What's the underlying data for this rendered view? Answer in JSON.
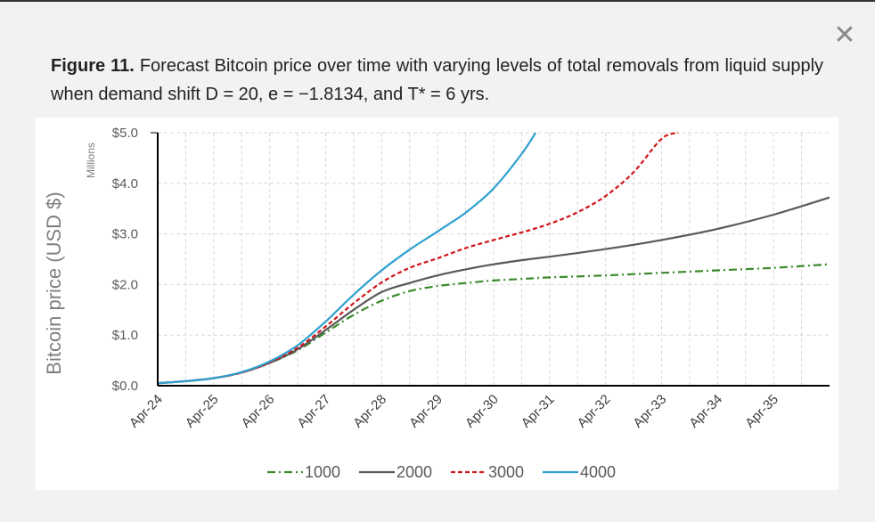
{
  "dialog": {
    "close_symbol": "✕"
  },
  "caption": {
    "label": "Figure 11.",
    "text": "Forecast Bitcoin price over time with varying levels of total removals from liquid supply when demand shift D = 20, e = −1.8134, and T* = 6 yrs."
  },
  "chart_data": {
    "type": "line",
    "title": "",
    "ylabel": "Bitcoin price (USD $)",
    "y_unit_label": "Millions",
    "xlabel": "",
    "ylim": [
      0,
      5
    ],
    "xlim": [
      2024.25,
      2036.25
    ],
    "grid": true,
    "legend_position": "bottom",
    "y_ticks": [
      {
        "value": 0,
        "label": "$0.0"
      },
      {
        "value": 1,
        "label": "$1.0"
      },
      {
        "value": 2,
        "label": "$2.0"
      },
      {
        "value": 3,
        "label": "$3.0"
      },
      {
        "value": 4,
        "label": "$4.0"
      },
      {
        "value": 5,
        "label": "$5.0"
      }
    ],
    "x_ticks": [
      {
        "value": 2024.25,
        "label": "Apr-24"
      },
      {
        "value": 2025.25,
        "label": "Apr-25"
      },
      {
        "value": 2026.25,
        "label": "Apr-26"
      },
      {
        "value": 2027.25,
        "label": "Apr-27"
      },
      {
        "value": 2028.25,
        "label": "Apr-28"
      },
      {
        "value": 2029.25,
        "label": "Apr-29"
      },
      {
        "value": 2030.25,
        "label": "Apr-30"
      },
      {
        "value": 2031.25,
        "label": "Apr-31"
      },
      {
        "value": 2032.25,
        "label": "Apr-32"
      },
      {
        "value": 2033.25,
        "label": "Apr-33"
      },
      {
        "value": 2034.25,
        "label": "Apr-34"
      },
      {
        "value": 2035.25,
        "label": "Apr-35"
      }
    ],
    "series": [
      {
        "name": "1000",
        "color": "#3a8a2a",
        "dash": "dashdot",
        "x": [
          2024.25,
          2024.75,
          2025.25,
          2025.75,
          2026.25,
          2026.75,
          2027.25,
          2027.75,
          2028.25,
          2028.75,
          2029.25,
          2029.75,
          2030.25,
          2030.75,
          2031.25,
          2032.25,
          2033.25,
          2034.25,
          2035.25,
          2036.25
        ],
        "values": [
          0.05,
          0.09,
          0.15,
          0.26,
          0.45,
          0.7,
          1.05,
          1.4,
          1.68,
          1.87,
          1.97,
          2.03,
          2.08,
          2.11,
          2.14,
          2.18,
          2.23,
          2.28,
          2.33,
          2.4
        ]
      },
      {
        "name": "2000",
        "color": "#595959",
        "dash": "solid",
        "x": [
          2024.25,
          2024.75,
          2025.25,
          2025.75,
          2026.25,
          2026.75,
          2027.25,
          2027.75,
          2028.25,
          2028.75,
          2029.25,
          2029.75,
          2030.25,
          2030.75,
          2031.25,
          2032.25,
          2033.25,
          2034.25,
          2035.25,
          2036.25
        ],
        "values": [
          0.05,
          0.09,
          0.15,
          0.26,
          0.45,
          0.72,
          1.1,
          1.5,
          1.85,
          2.03,
          2.18,
          2.3,
          2.4,
          2.48,
          2.55,
          2.7,
          2.88,
          3.1,
          3.38,
          3.72
        ]
      },
      {
        "name": "3000",
        "color": "#d0161a",
        "dash": "dashed",
        "x": [
          2024.25,
          2024.75,
          2025.25,
          2025.75,
          2026.25,
          2026.75,
          2027.25,
          2027.75,
          2028.25,
          2028.75,
          2029.25,
          2029.75,
          2030.25,
          2030.75,
          2031.25,
          2031.75,
          2032.25,
          2032.75,
          2033.25,
          2033.55
        ],
        "values": [
          0.05,
          0.09,
          0.15,
          0.26,
          0.46,
          0.75,
          1.17,
          1.63,
          2.04,
          2.33,
          2.52,
          2.72,
          2.88,
          3.03,
          3.2,
          3.43,
          3.75,
          4.22,
          4.88,
          5.0
        ]
      },
      {
        "name": "4000",
        "color": "#2ea0d0",
        "dash": "solid",
        "x": [
          2024.25,
          2024.75,
          2025.25,
          2025.75,
          2026.25,
          2026.75,
          2027.25,
          2027.75,
          2028.25,
          2028.75,
          2029.25,
          2029.75,
          2030.25,
          2030.75,
          2031.0
        ],
        "values": [
          0.05,
          0.09,
          0.15,
          0.27,
          0.48,
          0.8,
          1.27,
          1.8,
          2.28,
          2.69,
          3.05,
          3.42,
          3.9,
          4.58,
          5.0
        ]
      }
    ]
  }
}
